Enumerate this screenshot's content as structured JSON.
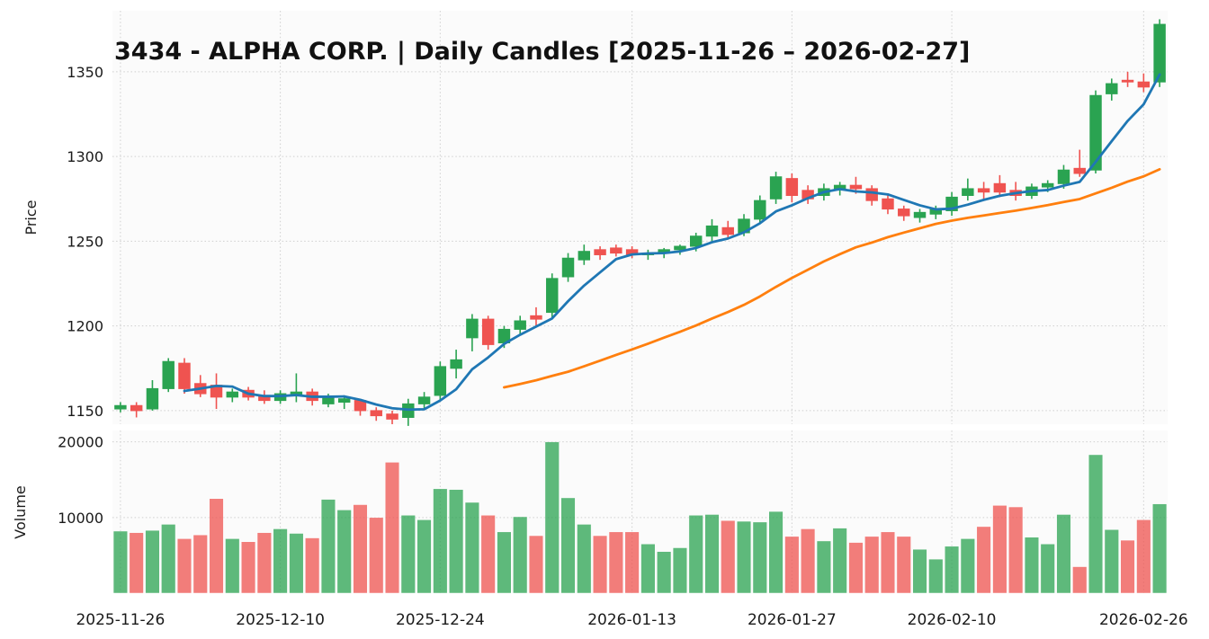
{
  "title": "3434 - ALPHA CORP. | Daily Candles [2025-11-26 – 2026-02-27]",
  "axes": {
    "price_label": "Price",
    "volume_label": "Volume",
    "price_ticks": [
      1150,
      1200,
      1250,
      1300,
      1350
    ],
    "volume_ticks": [
      10000,
      20000
    ],
    "x_tick_dates": [
      "2025-11-26",
      "2025-12-10",
      "2025-12-24",
      "2026-01-13",
      "2026-01-27",
      "2026-02-10",
      "2026-02-26"
    ]
  },
  "colors": {
    "up": "#2aa351",
    "down": "#ef5350",
    "ma_short": "#1f77b4",
    "ma_long": "#ff7f0e"
  },
  "chart_data": [
    {
      "type": "candlestick",
      "title": "3434 - ALPHA CORP. | Daily Candles [2025-11-26 – 2026-02-27]",
      "ylabel": "Price",
      "ylim": [
        1142,
        1386
      ],
      "grid": "dotted",
      "legend": "none",
      "dates": [
        "2025-11-26",
        "2025-11-27",
        "2025-11-28",
        "2025-12-01",
        "2025-12-02",
        "2025-12-03",
        "2025-12-04",
        "2025-12-05",
        "2025-12-08",
        "2025-12-09",
        "2025-12-10",
        "2025-12-11",
        "2025-12-12",
        "2025-12-15",
        "2025-12-16",
        "2025-12-17",
        "2025-12-18",
        "2025-12-19",
        "2025-12-22",
        "2025-12-23",
        "2025-12-24",
        "2025-12-26",
        "2025-12-29",
        "2025-12-30",
        "2025-12-31",
        "2026-01-02",
        "2026-01-05",
        "2026-01-06",
        "2026-01-07",
        "2026-01-08",
        "2026-01-09",
        "2026-01-12",
        "2026-01-13",
        "2026-01-14",
        "2026-01-15",
        "2026-01-16",
        "2026-01-19",
        "2026-01-20",
        "2026-01-21",
        "2026-01-22",
        "2026-01-23",
        "2026-01-26",
        "2026-01-27",
        "2026-01-28",
        "2026-01-29",
        "2026-01-30",
        "2026-02-02",
        "2026-02-03",
        "2026-02-04",
        "2026-02-05",
        "2026-02-06",
        "2026-02-09",
        "2026-02-10",
        "2026-02-11",
        "2026-02-12",
        "2026-02-13",
        "2026-02-16",
        "2026-02-17",
        "2026-02-18",
        "2026-02-19",
        "2026-02-20",
        "2026-02-23",
        "2026-02-24",
        "2026-02-25",
        "2026-02-26",
        "2026-02-27"
      ],
      "open": [
        1151,
        1153,
        1151,
        1163,
        1178,
        1166,
        1165,
        1158,
        1162,
        1159,
        1156,
        1159,
        1161,
        1154,
        1155,
        1156,
        1150,
        1148,
        1146,
        1154,
        1159,
        1175,
        1193,
        1204,
        1190,
        1198,
        1206,
        1208,
        1229,
        1239,
        1245,
        1246,
        1245,
        1242,
        1243,
        1245,
        1247,
        1253,
        1258,
        1255,
        1263,
        1275,
        1287,
        1280,
        1277,
        1281,
        1283,
        1281,
        1275,
        1269,
        1264,
        1266,
        1268,
        1277,
        1281,
        1284,
        1280,
        1277,
        1282,
        1284,
        1293,
        1292,
        1337,
        1345,
        1344,
        1344
      ],
      "high": [
        1155,
        1155,
        1168,
        1181,
        1181,
        1171,
        1172,
        1163,
        1164,
        1162,
        1162,
        1172,
        1163,
        1160,
        1159,
        1157,
        1152,
        1150,
        1157,
        1161,
        1179,
        1186,
        1207,
        1206,
        1200,
        1206,
        1211,
        1231,
        1243,
        1248,
        1247,
        1248,
        1247,
        1245,
        1246,
        1248,
        1255,
        1263,
        1262,
        1266,
        1277,
        1291,
        1290,
        1283,
        1284,
        1285,
        1288,
        1283,
        1277,
        1271,
        1269,
        1271,
        1279,
        1287,
        1285,
        1289,
        1285,
        1284,
        1286,
        1295,
        1304,
        1339,
        1346,
        1350,
        1349,
        1381
      ],
      "low": [
        1149,
        1146,
        1150,
        1161,
        1160,
        1158,
        1151,
        1155,
        1156,
        1154,
        1154,
        1155,
        1153,
        1152,
        1151,
        1147,
        1144,
        1142,
        1141,
        1151,
        1156,
        1169,
        1185,
        1186,
        1187,
        1195,
        1200,
        1205,
        1226,
        1236,
        1239,
        1241,
        1240,
        1239,
        1240,
        1242,
        1244,
        1250,
        1251,
        1253,
        1260,
        1272,
        1273,
        1272,
        1274,
        1277,
        1278,
        1271,
        1266,
        1262,
        1261,
        1263,
        1265,
        1274,
        1274,
        1276,
        1274,
        1275,
        1279,
        1281,
        1288,
        1290,
        1333,
        1341,
        1338,
        1341
      ],
      "close": [
        1153,
        1150,
        1163,
        1179,
        1163,
        1160,
        1158,
        1161,
        1158,
        1156,
        1160,
        1161,
        1156,
        1158,
        1157,
        1150,
        1147,
        1145,
        1154,
        1158,
        1176,
        1180,
        1204,
        1189,
        1198,
        1203,
        1204,
        1228,
        1240,
        1244,
        1242,
        1243,
        1242,
        1243,
        1245,
        1247,
        1253,
        1259,
        1254,
        1263,
        1274,
        1288,
        1277,
        1275,
        1281,
        1283,
        1281,
        1274,
        1269,
        1265,
        1267,
        1269,
        1276,
        1281,
        1279,
        1279,
        1277,
        1282,
        1284,
        1292,
        1290,
        1336,
        1343,
        1344,
        1341,
        1378
      ],
      "overlays": [
        {
          "name": "ma-short",
          "period": 5,
          "color": "#1f77b4"
        },
        {
          "name": "ma-long",
          "period": 25,
          "color": "#ff7f0e"
        }
      ]
    },
    {
      "type": "bar",
      "ylabel": "Volume",
      "ylim": [
        0,
        21500
      ],
      "grid": "dotted",
      "values": [
        8200,
        8000,
        8300,
        9100,
        7200,
        7700,
        12500,
        7200,
        6800,
        8000,
        8500,
        7900,
        7300,
        12400,
        11000,
        11700,
        10000,
        17300,
        10300,
        9700,
        13800,
        13700,
        12000,
        10300,
        8100,
        10100,
        7600,
        20000,
        12600,
        9100,
        7600,
        8100,
        8100,
        6500,
        5500,
        6000,
        10300,
        10400,
        9600,
        9500,
        9400,
        10800,
        7500,
        8500,
        6900,
        8600,
        6700,
        7500,
        8100,
        7500,
        5800,
        4500,
        6200,
        7200,
        8800,
        11600,
        11400,
        7400,
        6500,
        10400,
        3500,
        18300,
        8400,
        7000,
        9700,
        11800
      ]
    }
  ]
}
